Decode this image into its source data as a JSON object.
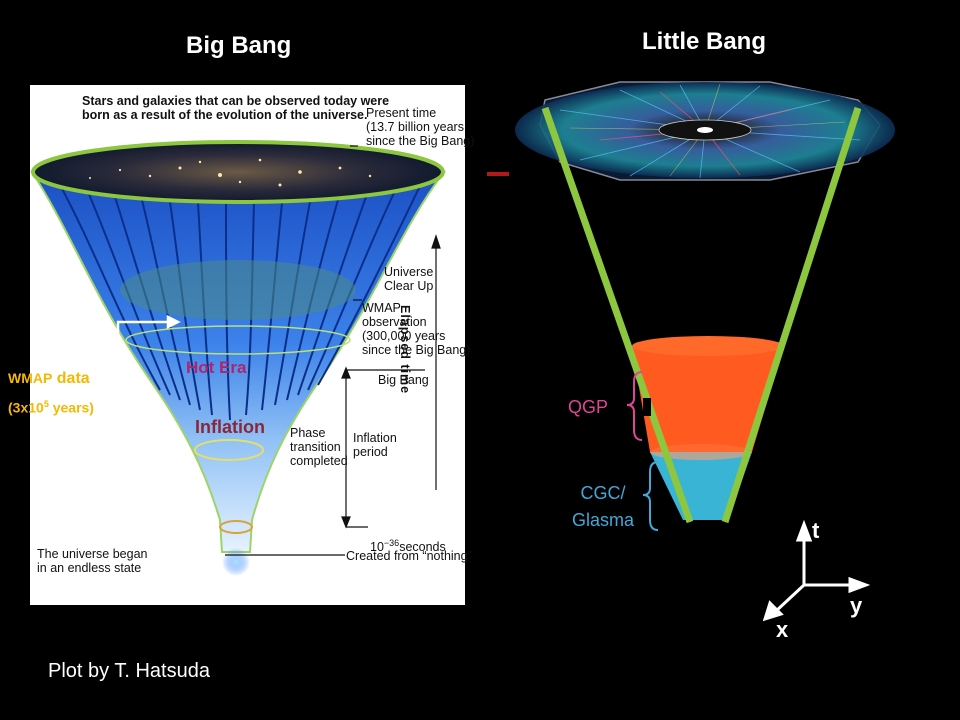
{
  "titles": {
    "big_bang": "Big Bang",
    "little_bang": "Little Bang"
  },
  "big_bang_annotations": {
    "stars": "Stars and galaxies that can be observed today were\nborn as a result of the evolution of the universe.",
    "present": "Present time\n(13.7 billion years\nsince the Big Bang)",
    "elapsed": "Elapsed time",
    "clear_up": "Universe\nClear Up",
    "wmap_obs": "WMAP\nobservation\n(300,000 years\nsince the Big Bang)",
    "big_bang_mark": "Big Bang",
    "phase": "Phase\ntransition\ncompleted",
    "inflation_period": "Inflation\nperiod",
    "seconds_base": "10",
    "seconds_exp": "−36",
    "seconds_unit": "seconds",
    "began": "The universe began\nin an endless state",
    "created": "Created from “nothing”"
  },
  "labels": {
    "wmap_prefix": "WMAP",
    "wmap_data": "data",
    "wmap_years_pre": "(3x10",
    "wmap_years_exp": "5",
    "wmap_years_post": " years)",
    "hot_era": "Hot Era",
    "inflation": "Inflation",
    "qgp": "QGP",
    "cgc_line1": "CGC/",
    "cgc_line2": "Glasma"
  },
  "axes": {
    "t": "t",
    "y": "y",
    "x": "x"
  },
  "credit": "Plot by T. Hatsuda",
  "colors": {
    "cone_outline": "#8dc63f",
    "qgp": "#ff5a1f",
    "cgc": "#3ab4d4",
    "funnel_blue": "#2a6de0",
    "wmap_label": "#f6b800",
    "hot_era": "#b0246a",
    "inflation": "#8b2638"
  }
}
